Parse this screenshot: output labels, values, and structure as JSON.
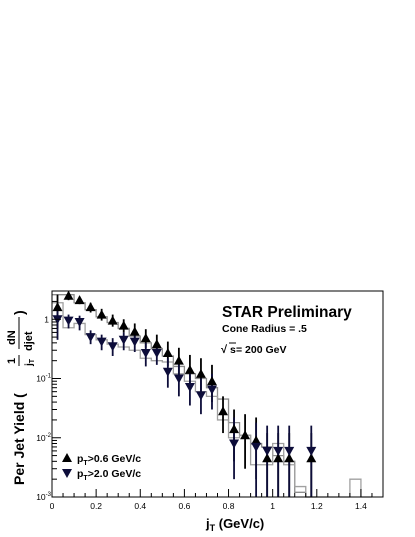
{
  "chart_data": {
    "type": "scatter",
    "xlabel_main": "j",
    "xlabel_sub": "T",
    "xlabel_rest": " (GeV/c)",
    "ylabel_main": "Per Jet Yield (",
    "ylabel_frac_num": "dN",
    "ylabel_frac_den_j": "j",
    "ylabel_frac_den_sub": "T",
    "ylabel_frac_den_rest": " djet",
    "ylabel_frac_pre": "1",
    "ylabel_close": ")",
    "xlim": [
      0,
      1.5
    ],
    "ylim": [
      0.001,
      3
    ],
    "yscale": "log",
    "xticks": [
      {
        "v": 0,
        "label": "0"
      },
      {
        "v": 0.2,
        "label": "0.2"
      },
      {
        "v": 0.4,
        "label": "0.4"
      },
      {
        "v": 0.6,
        "label": "0.6"
      },
      {
        "v": 0.8,
        "label": "0.8"
      },
      {
        "v": 1.0,
        "label": "1"
      },
      {
        "v": 1.2,
        "label": "1.2"
      },
      {
        "v": 1.4,
        "label": "1.4"
      }
    ],
    "yticks": [
      {
        "v": 1,
        "base": "1",
        "exp": ""
      },
      {
        "v": 0.1,
        "base": "10",
        "exp": "-1"
      },
      {
        "v": 0.01,
        "base": "10",
        "exp": "-2"
      },
      {
        "v": 0.001,
        "base": "10",
        "exp": "-3"
      }
    ],
    "annotations": {
      "title": "STAR Preliminary",
      "cone": "Cone Radius = .5",
      "sqrt": "√",
      "energy_s": "s",
      "energy_rest": " = 200 GeV"
    },
    "legend": [
      {
        "marker": "up",
        "p": "p",
        "sub": "T",
        "rest": ">0.6 GeV/c"
      },
      {
        "marker": "down",
        "p": "p",
        "sub": "T",
        "rest": ">2.0 GeV/c"
      }
    ],
    "series": [
      {
        "marker": "up",
        "color": "#000000",
        "points": [
          {
            "x": 0.025,
            "y": 1.6,
            "lo": 0.7,
            "hi": 2.6
          },
          {
            "x": 0.075,
            "y": 2.5,
            "lo": 2.1,
            "hi": 2.9
          },
          {
            "x": 0.125,
            "y": 2.1,
            "lo": 1.8,
            "hi": 2.4
          },
          {
            "x": 0.175,
            "y": 1.6,
            "lo": 1.3,
            "hi": 1.9
          },
          {
            "x": 0.225,
            "y": 1.2,
            "lo": 0.95,
            "hi": 1.5
          },
          {
            "x": 0.275,
            "y": 0.95,
            "lo": 0.75,
            "hi": 1.2
          },
          {
            "x": 0.325,
            "y": 0.78,
            "lo": 0.6,
            "hi": 1.0
          },
          {
            "x": 0.375,
            "y": 0.62,
            "lo": 0.45,
            "hi": 0.85
          },
          {
            "x": 0.425,
            "y": 0.48,
            "lo": 0.33,
            "hi": 0.68
          },
          {
            "x": 0.475,
            "y": 0.38,
            "lo": 0.25,
            "hi": 0.55
          },
          {
            "x": 0.525,
            "y": 0.27,
            "lo": 0.16,
            "hi": 0.42
          },
          {
            "x": 0.575,
            "y": 0.2,
            "lo": 0.1,
            "hi": 0.33
          },
          {
            "x": 0.625,
            "y": 0.14,
            "lo": 0.07,
            "hi": 0.25
          },
          {
            "x": 0.675,
            "y": 0.12,
            "lo": 0.06,
            "hi": 0.22
          },
          {
            "x": 0.725,
            "y": 0.09,
            "lo": 0.04,
            "hi": 0.17
          },
          {
            "x": 0.775,
            "y": 0.028,
            "lo": 0.012,
            "hi": 0.05
          },
          {
            "x": 0.825,
            "y": 0.014,
            "lo": 0.004,
            "hi": 0.03
          },
          {
            "x": 0.875,
            "y": 0.011,
            "lo": 0.003,
            "hi": 0.025
          },
          {
            "x": 0.925,
            "y": 0.009,
            "lo": 0.002,
            "hi": 0.022
          },
          {
            "x": 0.975,
            "y": 0.0045,
            "lo": 0.001,
            "hi": 0.012
          },
          {
            "x": 1.025,
            "y": 0.0045,
            "lo": 0.001,
            "hi": 0.012
          },
          {
            "x": 1.075,
            "y": 0.0045,
            "lo": 0.001,
            "hi": 0.012
          },
          {
            "x": 1.175,
            "y": 0.0045,
            "lo": 0.001,
            "hi": 0.012
          }
        ]
      },
      {
        "marker": "down",
        "color": "#0d0d3a",
        "points": [
          {
            "x": 0.025,
            "y": 1.0,
            "lo": 0.45,
            "hi": 1.8
          },
          {
            "x": 0.075,
            "y": 0.95,
            "lo": 0.7,
            "hi": 1.2
          },
          {
            "x": 0.125,
            "y": 0.9,
            "lo": 0.65,
            "hi": 1.15
          },
          {
            "x": 0.175,
            "y": 0.5,
            "lo": 0.38,
            "hi": 0.65
          },
          {
            "x": 0.225,
            "y": 0.42,
            "lo": 0.3,
            "hi": 0.55
          },
          {
            "x": 0.275,
            "y": 0.35,
            "lo": 0.24,
            "hi": 0.48
          },
          {
            "x": 0.325,
            "y": 0.45,
            "lo": 0.3,
            "hi": 0.6
          },
          {
            "x": 0.375,
            "y": 0.42,
            "lo": 0.28,
            "hi": 0.58
          },
          {
            "x": 0.425,
            "y": 0.27,
            "lo": 0.16,
            "hi": 0.4
          },
          {
            "x": 0.475,
            "y": 0.27,
            "lo": 0.17,
            "hi": 0.4
          },
          {
            "x": 0.525,
            "y": 0.13,
            "lo": 0.07,
            "hi": 0.22
          },
          {
            "x": 0.575,
            "y": 0.1,
            "lo": 0.05,
            "hi": 0.18
          },
          {
            "x": 0.625,
            "y": 0.072,
            "lo": 0.035,
            "hi": 0.13
          },
          {
            "x": 0.675,
            "y": 0.052,
            "lo": 0.025,
            "hi": 0.1
          },
          {
            "x": 0.725,
            "y": 0.065,
            "lo": 0.03,
            "hi": 0.12
          },
          {
            "x": 0.825,
            "y": 0.008,
            "lo": 0.002,
            "hi": 0.022
          },
          {
            "x": 0.925,
            "y": 0.007,
            "lo": 0.001,
            "hi": 0.018
          },
          {
            "x": 0.975,
            "y": 0.006,
            "lo": 0.001,
            "hi": 0.016
          },
          {
            "x": 1.025,
            "y": 0.006,
            "lo": 0.001,
            "hi": 0.016
          },
          {
            "x": 1.075,
            "y": 0.006,
            "lo": 0.001,
            "hi": 0.016
          },
          {
            "x": 1.175,
            "y": 0.006,
            "lo": 0.001,
            "hi": 0.016
          }
        ]
      }
    ],
    "histograms": [
      {
        "color": "#8c8c8c",
        "bin_width": 0.05,
        "bins": [
          {
            "x0": 0.0,
            "y": 2.6
          },
          {
            "x0": 0.05,
            "y": 2.6
          },
          {
            "x0": 0.1,
            "y": 1.9
          },
          {
            "x0": 0.15,
            "y": 1.45
          },
          {
            "x0": 0.2,
            "y": 1.1
          },
          {
            "x0": 0.25,
            "y": 0.88
          },
          {
            "x0": 0.3,
            "y": 0.7
          },
          {
            "x0": 0.35,
            "y": 0.52
          },
          {
            "x0": 0.4,
            "y": 0.4
          },
          {
            "x0": 0.45,
            "y": 0.32
          },
          {
            "x0": 0.5,
            "y": 0.24
          },
          {
            "x0": 0.55,
            "y": 0.16
          },
          {
            "x0": 0.6,
            "y": 0.12
          },
          {
            "x0": 0.65,
            "y": 0.1
          },
          {
            "x0": 0.7,
            "y": 0.07
          },
          {
            "x0": 0.75,
            "y": 0.045
          },
          {
            "x0": 0.8,
            "y": 0.018
          },
          {
            "x0": 0.85,
            "y": 0.011
          },
          {
            "x0": 0.9,
            "y": 0.008
          },
          {
            "x0": 0.95,
            "y": 0.007
          },
          {
            "x0": 1.0,
            "y": 0.005
          },
          {
            "x0": 1.05,
            "y": 0.004
          },
          {
            "x0": 1.1,
            "y": 0.0012
          },
          {
            "x0": 1.15,
            "y": 0.001
          }
        ]
      },
      {
        "color": "#a0a0a0",
        "bin_width": 0.05,
        "bins": [
          {
            "x0": 0.0,
            "y": 1.9
          },
          {
            "x0": 0.05,
            "y": 0.72
          },
          {
            "x0": 0.1,
            "y": 0.85
          },
          {
            "x0": 0.15,
            "y": 0.55
          },
          {
            "x0": 0.2,
            "y": 0.45
          },
          {
            "x0": 0.25,
            "y": 0.38
          },
          {
            "x0": 0.3,
            "y": 0.34
          },
          {
            "x0": 0.35,
            "y": 0.3
          },
          {
            "x0": 0.4,
            "y": 0.22
          },
          {
            "x0": 0.45,
            "y": 0.2
          },
          {
            "x0": 0.5,
            "y": 0.19
          },
          {
            "x0": 0.55,
            "y": 0.12
          },
          {
            "x0": 0.6,
            "y": 0.09
          },
          {
            "x0": 0.65,
            "y": 0.06
          },
          {
            "x0": 0.7,
            "y": 0.05
          },
          {
            "x0": 0.75,
            "y": 0.02
          },
          {
            "x0": 0.8,
            "y": 0.01
          },
          {
            "x0": 0.85,
            "y": 0.011
          },
          {
            "x0": 0.9,
            "y": 0.0035
          },
          {
            "x0": 0.95,
            "y": 0.0035
          },
          {
            "x0": 1.0,
            "y": 0.008
          },
          {
            "x0": 1.05,
            "y": 0.0035
          },
          {
            "x0": 1.1,
            "y": 0.0015
          },
          {
            "x0": 1.15,
            "y": 0.001
          },
          {
            "x0": 1.2,
            "y": 0.001
          },
          {
            "x0": 1.25,
            "y": 0.001
          },
          {
            "x0": 1.3,
            "y": 0.001
          },
          {
            "x0": 1.35,
            "y": 0.002
          },
          {
            "x0": 1.4,
            "y": 0.001
          }
        ]
      }
    ]
  }
}
